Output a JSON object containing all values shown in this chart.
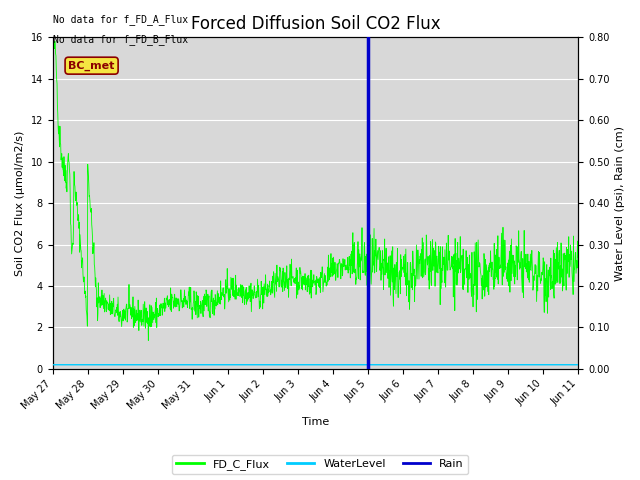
{
  "title": "Forced Diffusion Soil CO2 Flux",
  "xlabel": "Time",
  "ylabel_left": "Soil CO2 Flux (μmol/m2/s)",
  "ylabel_right": "Water Level (psi), Rain (cm)",
  "no_data_text_1": "No data for f_FD_A_Flux",
  "no_data_text_2": "No data for f_FD_B_Flux",
  "bc_met_label": "BC_met",
  "legend_entries": [
    "FD_C_Flux",
    "WaterLevel",
    "Rain"
  ],
  "legend_colors": [
    "#00ff00",
    "#00ccff",
    "#0000cc"
  ],
  "flux_color": "#00ff00",
  "water_color": "#00ccff",
  "rain_color": "#0000cc",
  "ylim_left": [
    0,
    16
  ],
  "ylim_right": [
    0.0,
    0.8
  ],
  "water_level_value": 0.01,
  "rain_day": 9.0,
  "title_fontsize": 12,
  "axis_fontsize": 8,
  "tick_fontsize": 7,
  "plot_bg_color": "#d8d8d8",
  "grid_color": "#ffffff",
  "tick_positions": [
    0,
    1,
    2,
    3,
    4,
    5,
    6,
    7,
    8,
    9,
    10,
    11,
    12,
    13,
    14,
    15
  ],
  "tick_labels": [
    "May 27",
    "May 28",
    "May 29",
    "May 30",
    "May 31",
    "Jun 1",
    "Jun 2",
    "Jun 3",
    "Jun 4",
    "Jun 5",
    "Jun 6",
    "Jun 7",
    "Jun 8",
    "Jun 9",
    "Jun 10",
    "Jun 11"
  ]
}
